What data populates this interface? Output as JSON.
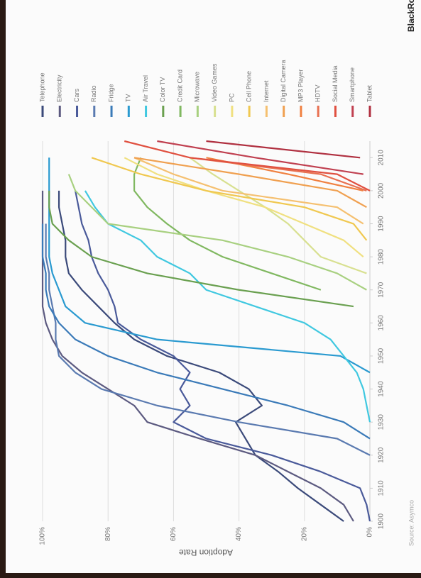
{
  "chart_data": {
    "type": "line",
    "axis_title": "Adoption Rate",
    "source": "Source: Asymco",
    "brand": "BlackRock",
    "grid": true,
    "legend": "right",
    "xlim": [
      1900,
      2015
    ],
    "xticks": [
      1900,
      1910,
      1920,
      1930,
      1940,
      1950,
      1960,
      1970,
      1980,
      1990,
      2000,
      2010
    ],
    "ylim": [
      0,
      100
    ],
    "yticks": [
      {
        "value": 0,
        "label": "0%"
      },
      {
        "value": 20,
        "label": "20%"
      },
      {
        "value": 40,
        "label": "40%"
      },
      {
        "value": 60,
        "label": "60%"
      },
      {
        "value": 80,
        "label": "80%"
      },
      {
        "value": 100,
        "label": "100%"
      }
    ],
    "x": [
      1900,
      1905,
      1910,
      1915,
      1920,
      1925,
      1930,
      1935,
      1940,
      1945,
      1950,
      1955,
      1960,
      1965,
      1970,
      1975,
      1980,
      1985,
      1990,
      1995,
      2000,
      2005,
      2010,
      2015
    ],
    "series": [
      {
        "name": "Telephone",
        "color": "#3b4a7a",
        "values": [
          8,
          15,
          22,
          28,
          35,
          38,
          41,
          33,
          37,
          46,
          62,
          72,
          78,
          83,
          88,
          92,
          93,
          93,
          94,
          95,
          95,
          null,
          null,
          null
        ]
      },
      {
        "name": "Electricity",
        "color": "#5c5a80",
        "values": [
          5,
          8,
          15,
          25,
          35,
          52,
          68,
          72,
          80,
          88,
          94,
          97,
          99,
          100,
          100,
          100,
          100,
          100,
          100,
          100,
          100,
          null,
          null,
          null
        ]
      },
      {
        "name": "Cars",
        "color": "#4a5a9a",
        "values": [
          0,
          1,
          3,
          15,
          30,
          50,
          60,
          55,
          58,
          55,
          60,
          70,
          77,
          78,
          80,
          83,
          85,
          86,
          88,
          89,
          90,
          null,
          null,
          null
        ]
      },
      {
        "name": "Radio",
        "color": "#5a7ab0",
        "values": [
          null,
          null,
          null,
          null,
          0,
          10,
          40,
          65,
          82,
          90,
          95,
          96,
          96,
          97,
          98,
          98,
          99,
          99,
          99,
          null,
          null,
          null,
          null,
          null
        ]
      },
      {
        "name": "Fridge",
        "color": "#3a7ab8",
        "values": [
          null,
          null,
          null,
          null,
          null,
          0,
          8,
          25,
          45,
          65,
          80,
          90,
          95,
          98,
          99,
          99,
          100,
          100,
          100,
          null,
          null,
          null,
          null,
          null
        ]
      },
      {
        "name": "TV",
        "color": "#2a9ad0",
        "values": [
          null,
          null,
          null,
          null,
          null,
          null,
          null,
          null,
          null,
          0,
          9,
          65,
          87,
          93,
          95,
          97,
          98,
          98,
          98,
          98,
          98,
          98,
          98,
          null
        ]
      },
      {
        "name": "Air Travel",
        "color": "#40c8e0",
        "values": [
          null,
          null,
          null,
          null,
          null,
          null,
          0,
          1,
          2,
          4,
          8,
          12,
          20,
          35,
          50,
          55,
          65,
          70,
          80,
          84,
          87,
          null,
          null,
          null
        ]
      },
      {
        "name": "Color TV",
        "color": "#6aa050",
        "values": [
          null,
          null,
          null,
          null,
          null,
          null,
          null,
          null,
          null,
          null,
          null,
          null,
          null,
          5,
          40,
          68,
          85,
          92,
          97,
          98,
          98,
          null,
          null,
          null
        ]
      },
      {
        "name": "Credit Card",
        "color": "#80b860",
        "values": [
          null,
          null,
          null,
          null,
          null,
          null,
          null,
          null,
          null,
          null,
          null,
          null,
          null,
          null,
          15,
          30,
          45,
          55,
          62,
          68,
          72,
          72,
          70,
          null
        ]
      },
      {
        "name": "Microwave",
        "color": "#a8d080",
        "values": [
          null,
          null,
          null,
          null,
          null,
          null,
          null,
          null,
          null,
          null,
          null,
          null,
          null,
          null,
          1,
          10,
          25,
          45,
          80,
          85,
          90,
          92,
          null,
          null
        ]
      },
      {
        "name": "Video Games",
        "color": "#d8e090",
        "values": [
          null,
          null,
          null,
          null,
          null,
          null,
          null,
          null,
          null,
          null,
          null,
          null,
          null,
          null,
          null,
          1,
          15,
          20,
          25,
          32,
          40,
          48,
          55,
          null
        ]
      },
      {
        "name": "PC",
        "color": "#f0e080",
        "values": [
          null,
          null,
          null,
          null,
          null,
          null,
          null,
          null,
          null,
          null,
          null,
          null,
          null,
          null,
          null,
          null,
          2,
          8,
          20,
          32,
          50,
          65,
          75,
          null
        ]
      },
      {
        "name": "Cell Phone",
        "color": "#f0c850",
        "values": [
          null,
          null,
          null,
          null,
          null,
          null,
          null,
          null,
          null,
          null,
          null,
          null,
          null,
          null,
          null,
          null,
          null,
          1,
          5,
          20,
          50,
          70,
          85,
          null
        ]
      },
      {
        "name": "Internet",
        "color": "#f5c070",
        "values": [
          null,
          null,
          null,
          null,
          null,
          null,
          null,
          null,
          null,
          null,
          null,
          null,
          null,
          null,
          null,
          null,
          null,
          null,
          2,
          10,
          45,
          60,
          72,
          null
        ]
      },
      {
        "name": "Digital Camera",
        "color": "#f0a050",
        "values": [
          null,
          null,
          null,
          null,
          null,
          null,
          null,
          null,
          null,
          null,
          null,
          null,
          null,
          null,
          null,
          null,
          null,
          null,
          null,
          1,
          10,
          40,
          72,
          null
        ]
      },
      {
        "name": "MP3 Player",
        "color": "#f08040",
        "values": [
          null,
          null,
          null,
          null,
          null,
          null,
          null,
          null,
          null,
          null,
          null,
          null,
          null,
          null,
          null,
          null,
          null,
          null,
          null,
          null,
          2,
          25,
          50,
          null
        ]
      },
      {
        "name": "HDTV",
        "color": "#e87050",
        "values": [
          null,
          null,
          null,
          null,
          null,
          null,
          null,
          null,
          null,
          null,
          null,
          null,
          null,
          null,
          null,
          null,
          null,
          null,
          null,
          null,
          1,
          15,
          55,
          null
        ]
      },
      {
        "name": "Social Media",
        "color": "#e05040",
        "values": [
          null,
          null,
          null,
          null,
          null,
          null,
          null,
          null,
          null,
          null,
          null,
          null,
          null,
          null,
          null,
          null,
          null,
          null,
          null,
          null,
          0,
          10,
          55,
          75
        ]
      },
      {
        "name": "Smartphone",
        "color": "#c04050",
        "values": [
          null,
          null,
          null,
          null,
          null,
          null,
          null,
          null,
          null,
          null,
          null,
          null,
          null,
          null,
          null,
          null,
          null,
          null,
          null,
          null,
          null,
          2,
          35,
          65
        ]
      },
      {
        "name": "Tablet",
        "color": "#b03040",
        "values": [
          null,
          null,
          null,
          null,
          null,
          null,
          null,
          null,
          null,
          null,
          null,
          null,
          null,
          null,
          null,
          null,
          null,
          null,
          null,
          null,
          null,
          null,
          3,
          50
        ]
      }
    ]
  }
}
